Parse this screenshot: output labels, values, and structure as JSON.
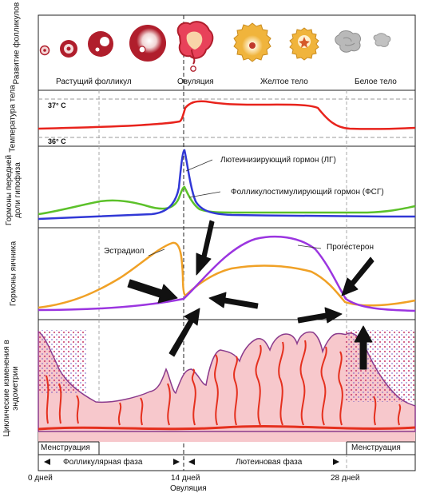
{
  "rows": {
    "follicle": "Развитие фолликулов яйцеклетки",
    "temperature": "Температура тела",
    "pituitary": "Гормоны передней доли гипофиза",
    "ovary": "Гормоны яичника",
    "endometrium": "Циклические изменения в эндометрии"
  },
  "stages": {
    "growing": "Растущий фолликул",
    "ovulation": "Овуляция",
    "corpus_luteum": "Желтое тело",
    "corpus_albicans": "Белое тело"
  },
  "temperature": {
    "high": "37° C",
    "low": "36° C"
  },
  "hormones": {
    "lh": "Лютеинизирующий гормон (ЛГ)",
    "fsh": "Фолликулостимулирующий гормон (ФСГ)",
    "estradiol": "Эстрадиол",
    "progesterone": "Прогестерон"
  },
  "phases": {
    "menstruation_start": "Менструация",
    "menstruation_end": "Менструация",
    "follicular": "Фолликулярная фаза",
    "luteal": "Лютеиновая фаза"
  },
  "days": {
    "day0": "0 дней",
    "day14": "14 дней",
    "day28": "28 дней",
    "ovulation": "Овуляция"
  },
  "colors": {
    "temperature": "#e8231c",
    "lh": "#3138d6",
    "fsh": "#5cc12a",
    "estradiol": "#f0a126",
    "progesterone": "#9b35e0",
    "endometrium_fill": "#f7c8cc",
    "endometrium_outline": "#8a3a8c",
    "gland": "#e5301e",
    "follicle": "#b01e2c",
    "corpus_luteum": "#f0b43c",
    "corpus_albicans": "#b9b9b9",
    "arrow": "#111111"
  }
}
